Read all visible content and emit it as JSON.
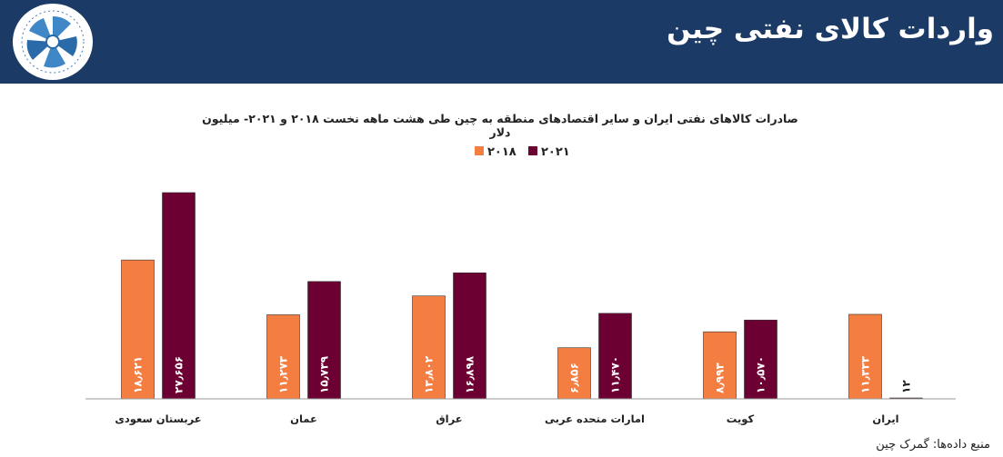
{
  "header": {
    "title": "واردات کالای نفتی چین"
  },
  "chart_data": {
    "type": "bar",
    "title": "صادرات کالاهای نفتی ایران و سایر اقتصادهای منطقه به چین طی هشت ماهه نخست ۲۰۱۸ و ۲۰۲۱- میلیون دلار",
    "categories": [
      "عربستان سعودی",
      "عمان",
      "عراق",
      "امارات متحده عربی",
      "کویت",
      "ایران"
    ],
    "series": [
      {
        "name": "۲۰۱۸",
        "color": "#f47e41",
        "values": [
          18621,
          11273,
          13802,
          6856,
          8993,
          11333
        ],
        "labels": [
          "۱۸٫۶۲۱",
          "۱۱٫۲۷۳",
          "۱۳٫۸۰۲",
          "۶٫۸۵۶",
          "۸٫۹۹۳",
          "۱۱٫۳۳۳"
        ]
      },
      {
        "name": "۲۰۲۱",
        "color": "#6c0033",
        "values": [
          27656,
          15739,
          16898,
          11470,
          10570,
          12
        ],
        "labels": [
          "۲۷٫۶۵۶",
          "۱۵٫۷۳۹",
          "۱۶٫۸۹۸",
          "۱۱٫۴۷۰",
          "۱۰٫۵۷۰",
          "۱۲"
        ]
      }
    ],
    "ylim": [
      0,
      28000
    ],
    "grid": false,
    "legend_position": "top-center"
  },
  "source": "منبع داده‌ها: گمرک چین",
  "logo": {
    "icon": "organization-logo-icon"
  }
}
